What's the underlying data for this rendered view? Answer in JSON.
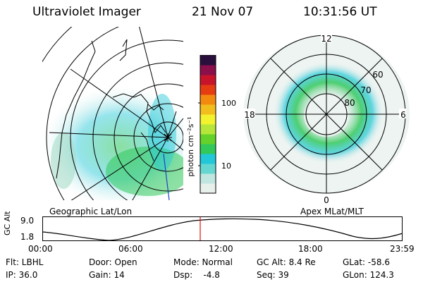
{
  "header": {
    "instrument": "Ultraviolet Imager",
    "date": "21 Nov 07",
    "time": "10:31:56 UT"
  },
  "panels": {
    "geo_label": "Geographic Lat/Lon",
    "apex_label": "Apex MLat/MLT"
  },
  "colorbar": {
    "unit_label": "photon cm⁻²s⁻¹",
    "ticks": [
      "100",
      "10"
    ],
    "colors": [
      "#e8f0ec",
      "#bfe6df",
      "#66d6d0",
      "#22c8d8",
      "#32c85a",
      "#64d22a",
      "#b6e63a",
      "#f2f22e",
      "#f2be1e",
      "#f28a10",
      "#e63c12",
      "#c8142a",
      "#8a0f4a",
      "#2a0f3c"
    ]
  },
  "polar": {
    "mlt_labels": [
      "12",
      "18",
      "6",
      "0"
    ],
    "lat_labels": [
      "60",
      "70",
      "80"
    ]
  },
  "gc_alt": {
    "axis_label": "GC Alt",
    "ticks": [
      "9.0",
      "1.8"
    ],
    "time_ticks": [
      "00:00",
      "06:00",
      "12:00",
      "18:00",
      "23:59"
    ],
    "marker_color": "#e01010"
  },
  "info": {
    "row1": [
      {
        "text": "Flt: LBHL"
      },
      {
        "text": "Door: Open"
      },
      {
        "text": "Mode: Normal"
      },
      {
        "text": "GC Alt: 8.4 Re"
      },
      {
        "text": "GLat: -58.6"
      }
    ],
    "row2": [
      {
        "text": "IP: 36.0"
      },
      {
        "text": "Gain: 14"
      },
      {
        "text": "Dsp:    -4.8"
      },
      {
        "text": "Seq: 39"
      },
      {
        "text": "GLon: 124.3"
      }
    ]
  }
}
